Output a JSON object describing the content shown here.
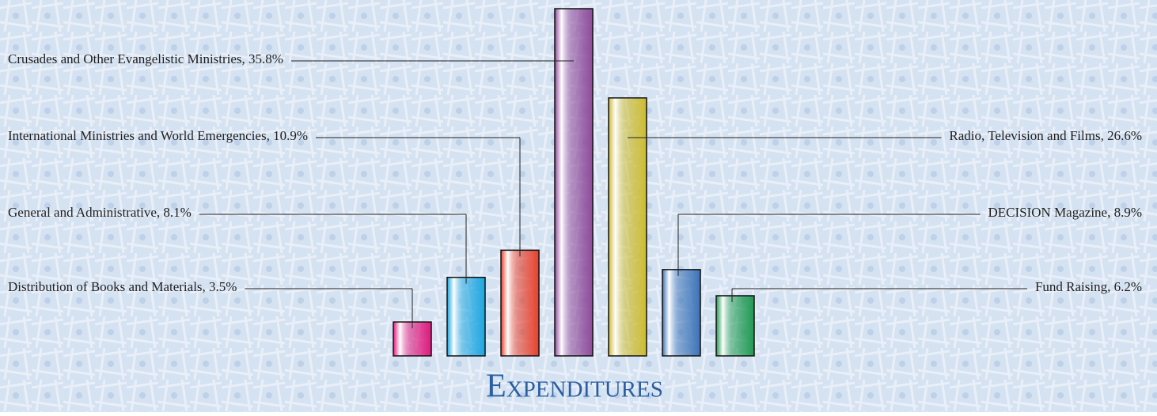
{
  "chart_data": {
    "type": "bar",
    "title": "Expenditures",
    "categories": [
      "Distribution of Books and Materials, 3.5%",
      "General and Administrative, 8.1%",
      "International Ministries and World Emergencies, 10.9%",
      "Crusades and Other Evangelistic Ministries, 35.8%",
      "Radio, Television and Films, 26.6%",
      "DECISION Magazine, 8.9%",
      "Fund Raising, 6.2%"
    ],
    "values": [
      3.5,
      8.1,
      10.9,
      35.8,
      26.6,
      8.9,
      6.2
    ],
    "colors": [
      "#e0197d",
      "#1ba6e0",
      "#e8402a",
      "#8e4a9a",
      "#cdbb2d",
      "#3b73b8",
      "#1e9a50"
    ]
  }
}
